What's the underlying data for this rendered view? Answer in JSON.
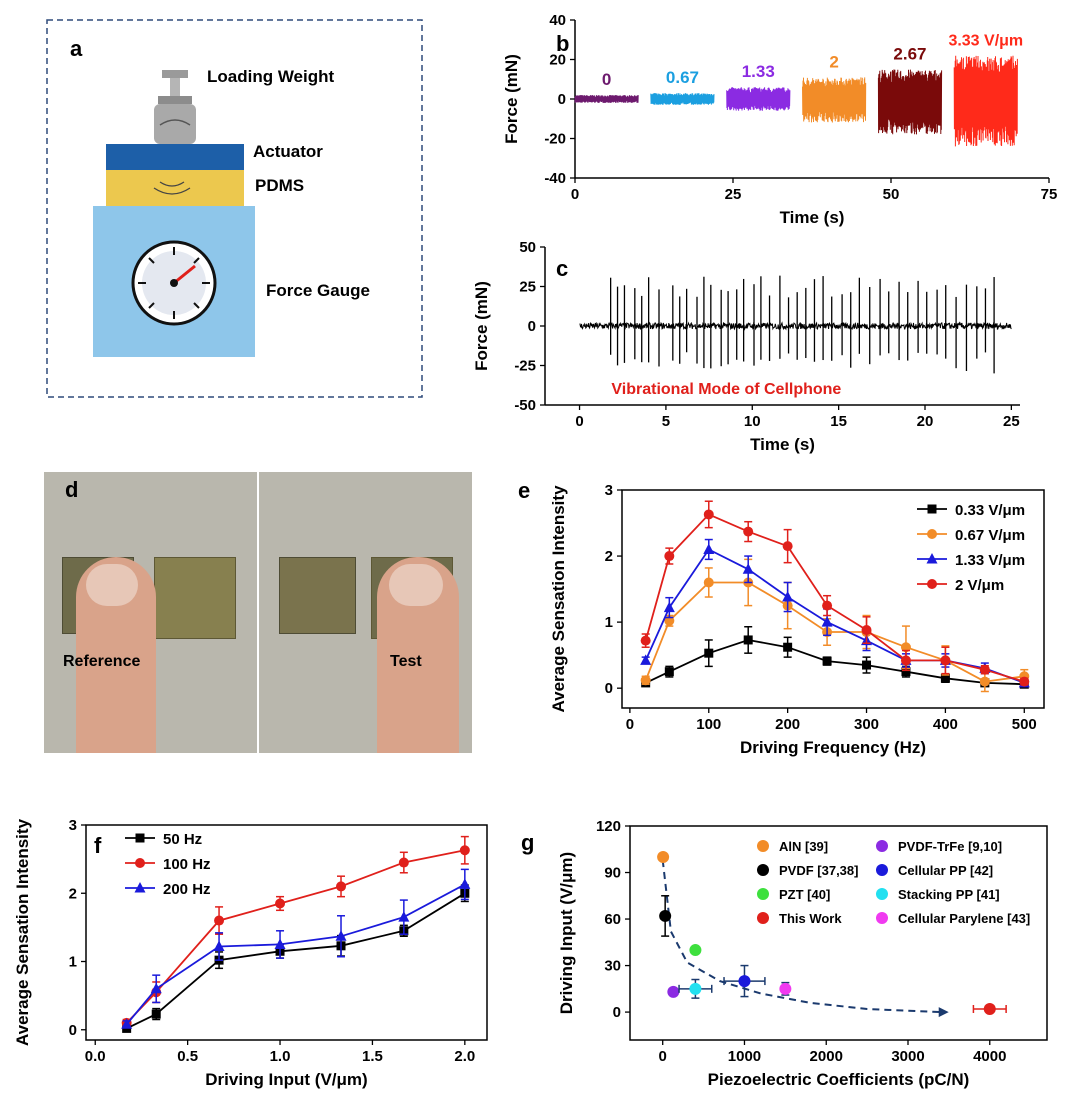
{
  "panels": {
    "a": "a",
    "b": "b",
    "c": "c",
    "d": "d",
    "e": "e",
    "f": "f",
    "g": "g"
  },
  "schematic": {
    "loading_weight": "Loading Weight",
    "actuator": "Actuator",
    "pdms": "PDMS",
    "force_gauge": "Force Gauge"
  },
  "photos": {
    "reference": "Reference",
    "test": "Test"
  },
  "colors": {
    "black": "#000000",
    "orange": "#f28c28",
    "blue": "#1a1adb",
    "red": "#e0201b",
    "purple": "#6d1a6e",
    "cyan": "#1b9fe0",
    "violet": "#8b2be2",
    "darkred": "#7a0a0a",
    "brightred": "#ff2a1a",
    "gauge_bg": "#8ec6ea",
    "actuator": "#1d5fa8",
    "pdms": "#ecc84e"
  },
  "chart_data": [
    {
      "id": "b",
      "type": "line",
      "title": "",
      "xlabel": "Time (s)",
      "ylabel": "Force (mN)",
      "xlim": [
        0,
        75
      ],
      "ylim": [
        -40,
        40
      ],
      "xticks": [
        "0",
        "25",
        "50",
        "75"
      ],
      "yticks": [
        "-40",
        "-20",
        "0",
        "20",
        "40"
      ],
      "series": [
        {
          "name": "0",
          "x_range": [
            0,
            10
          ],
          "amplitude": [
            -2,
            2
          ],
          "color": "#6d1a6e"
        },
        {
          "name": "0.67",
          "x_range": [
            12,
            22
          ],
          "amplitude": [
            -3,
            3
          ],
          "color": "#1b9fe0"
        },
        {
          "name": "1.33",
          "x_range": [
            24,
            34
          ],
          "amplitude": [
            -6,
            6
          ],
          "color": "#8b2be2"
        },
        {
          "name": "2",
          "x_range": [
            36,
            46
          ],
          "amplitude": [
            -12,
            11
          ],
          "color": "#f28c28"
        },
        {
          "name": "2.67",
          "x_range": [
            48,
            58
          ],
          "amplitude": [
            -18,
            15
          ],
          "color": "#7a0a0a"
        },
        {
          "name": "3.33 V/μm",
          "x_range": [
            60,
            70
          ],
          "amplitude": [
            -24,
            22
          ],
          "color": "#ff2a1a"
        }
      ]
    },
    {
      "id": "c",
      "type": "line",
      "title": "",
      "xlabel": "Time (s)",
      "ylabel": "Force (mN)",
      "xlim": [
        -2,
        25.5
      ],
      "ylim": [
        -50,
        50
      ],
      "xticks": [
        "0",
        "5",
        "10",
        "15",
        "20",
        "25"
      ],
      "yticks": [
        "-50",
        "-25",
        "0",
        "25",
        "50"
      ],
      "annotation": "Vibrational Mode of Cellphone",
      "signal": {
        "t_range": [
          0,
          25
        ],
        "baseline_noise": 2,
        "spike_times": [
          1.8,
          2.2,
          2.6,
          3.2,
          3.6,
          4.0,
          4.6,
          5.4,
          5.8,
          6.2,
          6.8,
          7.2,
          7.6,
          8.2,
          8.6,
          9.1,
          9.5,
          10.1,
          10.5,
          11.0,
          11.6,
          12.1,
          12.6,
          13.1,
          13.6,
          14.1,
          14.6,
          15.2,
          15.7,
          16.2,
          16.8,
          17.4,
          17.9,
          18.5,
          19.0,
          19.6,
          20.1,
          20.7,
          21.2,
          21.8,
          22.4,
          23.0,
          23.5,
          24.0
        ],
        "spike_amplitude": [
          -30,
          32
        ]
      }
    },
    {
      "id": "e",
      "type": "line",
      "title": "",
      "xlabel": "Driving Frequency (Hz)",
      "ylabel": "Average Sensation Intensity",
      "xlim": [
        -10,
        525
      ],
      "ylim": [
        -0.3,
        3
      ],
      "xticks": [
        "0",
        "100",
        "200",
        "300",
        "400",
        "500"
      ],
      "yticks": [
        "0",
        "1",
        "2",
        "3"
      ],
      "legend": "top-right",
      "x": [
        20,
        50,
        100,
        150,
        200,
        250,
        300,
        350,
        400,
        450,
        500
      ],
      "series": [
        {
          "name": "0.33 V/μm",
          "color": "#000000",
          "marker": "square",
          "values": [
            0.08,
            0.25,
            0.53,
            0.73,
            0.62,
            0.41,
            0.35,
            0.25,
            0.15,
            0.08,
            0.06
          ],
          "errors": [
            0.05,
            0.08,
            0.2,
            0.2,
            0.15,
            0.06,
            0.12,
            0.08,
            0.06,
            0.05,
            0.05
          ]
        },
        {
          "name": "0.67 V/μm",
          "color": "#f28c28",
          "marker": "circle",
          "values": [
            0.12,
            1.02,
            1.6,
            1.6,
            1.25,
            0.85,
            0.85,
            0.62,
            0.42,
            0.1,
            0.18
          ],
          "errors": [
            0.06,
            0.08,
            0.22,
            0.35,
            0.35,
            0.2,
            0.25,
            0.32,
            0.22,
            0.15,
            0.1
          ]
        },
        {
          "name": "1.33 V/μm",
          "color": "#1a1adb",
          "marker": "triangle",
          "values": [
            0.42,
            1.22,
            2.1,
            1.8,
            1.38,
            1.0,
            0.72,
            0.42,
            0.42,
            0.3,
            0.08
          ],
          "errors": [
            0.05,
            0.15,
            0.15,
            0.2,
            0.22,
            0.2,
            0.15,
            0.1,
            0.1,
            0.08,
            0.05
          ]
        },
        {
          "name": "2 V/μm",
          "color": "#e0201b",
          "marker": "circle",
          "values": [
            0.72,
            2.0,
            2.63,
            2.37,
            2.15,
            1.25,
            0.88,
            0.42,
            0.42,
            0.28,
            0.1
          ],
          "errors": [
            0.1,
            0.12,
            0.2,
            0.15,
            0.25,
            0.15,
            0.2,
            0.15,
            0.2,
            0.06,
            0.05
          ]
        }
      ]
    },
    {
      "id": "f",
      "type": "line",
      "title": "",
      "xlabel": "Driving Input (V/μm)",
      "ylabel": "Average Sensation Intensity",
      "xlim": [
        -0.05,
        2.12
      ],
      "ylim": [
        -0.15,
        3
      ],
      "xticks": [
        "0.0",
        "0.5",
        "1.0",
        "1.5",
        "2.0"
      ],
      "yticks": [
        "0",
        "1",
        "2",
        "3"
      ],
      "legend": "top-left",
      "x": [
        0.17,
        0.33,
        0.67,
        1.0,
        1.33,
        1.67,
        2.0
      ],
      "series": [
        {
          "name": "50 Hz",
          "color": "#000000",
          "marker": "square",
          "values": [
            0.02,
            0.23,
            1.02,
            1.15,
            1.23,
            1.45,
            2.0
          ],
          "errors": [
            0.03,
            0.08,
            0.12,
            0.1,
            0.15,
            0.08,
            0.12
          ]
        },
        {
          "name": "100 Hz",
          "color": "#e0201b",
          "marker": "circle",
          "values": [
            0.1,
            0.55,
            1.6,
            1.85,
            2.1,
            2.45,
            2.63
          ],
          "errors": [
            0.05,
            0.15,
            0.2,
            0.1,
            0.15,
            0.15,
            0.2
          ]
        },
        {
          "name": "200 Hz",
          "color": "#1a1adb",
          "marker": "triangle",
          "values": [
            0.08,
            0.6,
            1.22,
            1.25,
            1.37,
            1.65,
            2.13
          ],
          "errors": [
            0.05,
            0.2,
            0.2,
            0.2,
            0.3,
            0.25,
            0.22
          ]
        }
      ]
    },
    {
      "id": "g",
      "type": "scatter",
      "title": "",
      "xlabel": "Piezoelectric Coefficients (pC/N)",
      "ylabel": "Driving Input (V/μm)",
      "xlim": [
        -400,
        4700
      ],
      "ylim": [
        -18,
        120
      ],
      "xticks": [
        "0",
        "1000",
        "2000",
        "3000",
        "4000"
      ],
      "yticks": [
        "0",
        "30",
        "60",
        "90",
        "120"
      ],
      "legend": "top-right",
      "points": [
        {
          "name": "AlN [39]",
          "x": 5,
          "y": 100,
          "xerr": 0,
          "yerr": 0,
          "color": "#f28c28"
        },
        {
          "name": "PVDF [37,38]",
          "x": 30,
          "y": 62,
          "xerr": 0,
          "yerr": 13,
          "color": "#000000"
        },
        {
          "name": "PZT [40]",
          "x": 400,
          "y": 40,
          "xerr": 0,
          "yerr": 0,
          "color": "#3ee03e"
        },
        {
          "name": "This Work",
          "x": 4000,
          "y": 2,
          "xerr": 200,
          "yerr": 0,
          "color": "#e0201b"
        },
        {
          "name": "PVDF-TrFe [9,10]",
          "x": 130,
          "y": 13,
          "xerr": 0,
          "yerr": 0,
          "color": "#8b2be2"
        },
        {
          "name": "Cellular PP [42]",
          "x": 1000,
          "y": 20,
          "xerr": 250,
          "yerr": 10,
          "color": "#1a1adb"
        },
        {
          "name": "Stacking PP [41]",
          "x": 400,
          "y": 15,
          "xerr": 200,
          "yerr": 6,
          "color": "#22e0f0"
        },
        {
          "name": "Cellular Parylene [43]",
          "x": 1500,
          "y": 15,
          "xerr": 0,
          "yerr": 4,
          "color": "#f03af0"
        }
      ],
      "trend_curve": {
        "x": [
          0,
          100,
          300,
          700,
          1200,
          1800,
          2500,
          3400
        ],
        "y": [
          98,
          52,
          32,
          20,
          12,
          6,
          2,
          0
        ]
      }
    }
  ]
}
